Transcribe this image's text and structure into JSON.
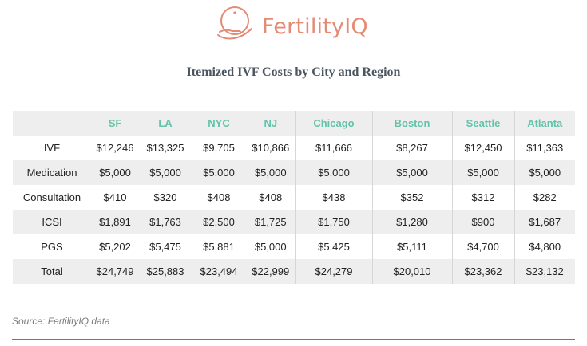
{
  "brand": {
    "name": "FertilityIQ",
    "accent": "#e48a75",
    "header_color": "#63c3a8"
  },
  "title": "Itemized IVF Costs by City and Region",
  "columns": [
    "SF",
    "LA",
    "NYC",
    "NJ",
    "Chicago",
    "Boston",
    "Seattle",
    "Atlanta"
  ],
  "rows": [
    {
      "label": "IVF",
      "values": [
        "$12,246",
        "$13,325",
        "$9,705",
        "$10,866",
        "$11,666",
        "$8,267",
        "$12,450",
        "$11,363"
      ]
    },
    {
      "label": "Medication",
      "values": [
        "$5,000",
        "$5,000",
        "$5,000",
        "$5,000",
        "$5,000",
        "$5,000",
        "$5,000",
        "$5,000"
      ]
    },
    {
      "label": "Consultation",
      "values": [
        "$410",
        "$320",
        "$408",
        "$408",
        "$438",
        "$352",
        "$312",
        "$282"
      ]
    },
    {
      "label": "ICSI",
      "values": [
        "$1,891",
        "$1,763",
        "$2,500",
        "$1,725",
        "$1,750",
        "$1,280",
        "$900",
        "$1,687"
      ]
    },
    {
      "label": "PGS",
      "values": [
        "$5,202",
        "$5,475",
        "$5,881",
        "$5,000",
        "$5,425",
        "$5,111",
        "$4,700",
        "$4,800"
      ]
    },
    {
      "label": "Total",
      "values": [
        "$24,749",
        "$25,883",
        "$23,494",
        "$22,999",
        "$24,279",
        "$20,010",
        "$23,362",
        "$23,132"
      ]
    }
  ],
  "source": "Source: FertilityIQ data"
}
